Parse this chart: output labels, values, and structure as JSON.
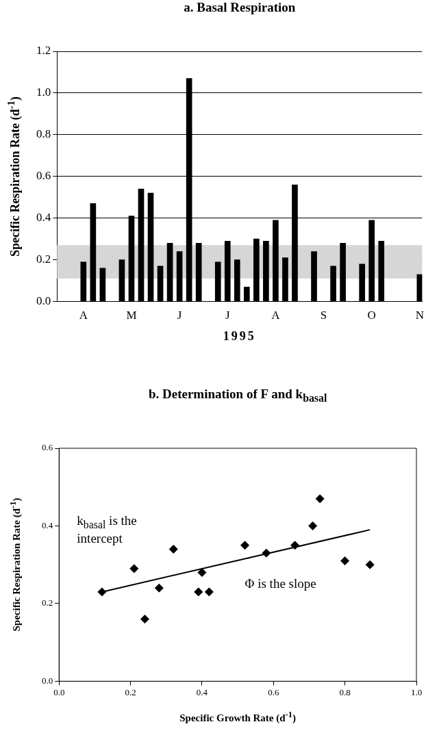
{
  "chart_data": [
    {
      "type": "bar",
      "title": "a. Basal Respiration",
      "xlabel": "1995",
      "ylabel": "Specific Respiration Rate (d$^{-1}$)",
      "categories": [
        null,
        null,
        null,
        null,
        null,
        "A",
        null,
        null,
        null,
        null,
        null,
        null,
        null,
        null,
        null,
        "M",
        null,
        null,
        null,
        null,
        null,
        null,
        null,
        null,
        null,
        "J",
        null,
        null,
        null,
        null,
        null,
        null,
        null,
        null,
        null,
        "J",
        null,
        null,
        null,
        null,
        null,
        null,
        null,
        null,
        null,
        "A",
        null,
        null,
        null,
        null,
        null,
        null,
        null,
        null,
        null,
        "S",
        null,
        null,
        null,
        null,
        null,
        null,
        null,
        null,
        null,
        "O",
        null,
        null,
        null,
        null,
        null,
        null,
        null,
        null,
        null,
        "N"
      ],
      "values": [
        null,
        null,
        null,
        null,
        null,
        0.19,
        null,
        0.47,
        null,
        0.16,
        null,
        null,
        null,
        0.2,
        null,
        0.41,
        null,
        0.54,
        null,
        0.52,
        null,
        0.17,
        null,
        0.28,
        null,
        0.24,
        null,
        1.07,
        null,
        0.28,
        null,
        null,
        null,
        0.19,
        null,
        0.29,
        null,
        0.2,
        null,
        0.07,
        null,
        0.3,
        null,
        0.29,
        null,
        0.39,
        null,
        0.21,
        null,
        0.56,
        null,
        null,
        null,
        0.24,
        null,
        null,
        null,
        0.17,
        null,
        0.28,
        null,
        null,
        null,
        0.18,
        null,
        0.39,
        null,
        0.29,
        null,
        null,
        null,
        null,
        null,
        null,
        null,
        0.13
      ],
      "color": "#000000",
      "ylim": [
        0,
        1.2
      ],
      "yticks": [
        {
          "value": 0,
          "label": "0.0"
        },
        {
          "value": 0.2,
          "label": "0.2"
        },
        {
          "value": 0.4,
          "label": "0.4"
        },
        {
          "value": 0.6,
          "label": "0.6"
        },
        {
          "value": 0.8,
          "label": "0.8"
        },
        {
          "value": 1,
          "label": "1.0"
        },
        {
          "value": 1.2,
          "label": "1.2"
        }
      ],
      "grid": "y",
      "bands": [
        {
          "axis": "y",
          "from": 0.11,
          "to": 0.27,
          "color": "#d6d6d6"
        }
      ]
    },
    {
      "type": "scatter",
      "title": "b. Determination of F and k$_{basal}$",
      "xlabel": "Specific Growth Rate (d$^{-1}$)",
      "ylabel": "Specific Respiration Rate (d$^{-1}$)",
      "series": [
        {
          "type": "scatter",
          "color": "#000000",
          "marker": "diamond",
          "x": [
            0.12,
            0.21,
            0.24,
            0.28,
            0.32,
            0.4,
            0.39,
            0.42,
            0.52,
            0.58,
            0.66,
            0.71,
            0.73,
            0.8,
            0.87
          ],
          "values": [
            0.23,
            0.29,
            0.16,
            0.24,
            0.34,
            0.28,
            0.23,
            0.23,
            0.35,
            0.33,
            0.35,
            0.4,
            0.47,
            0.31,
            0.3
          ]
        },
        {
          "type": "line",
          "color": "#000000",
          "marker": "none",
          "x": [
            0.12,
            0.87
          ],
          "values": [
            0.23,
            0.39
          ]
        }
      ],
      "xlim": [
        0,
        1
      ],
      "xticks": [
        {
          "value": 0,
          "label": "0.0"
        },
        {
          "value": 0.2,
          "label": "0.2"
        },
        {
          "value": 0.4,
          "label": "0.4"
        },
        {
          "value": 0.6,
          "label": "0.6"
        },
        {
          "value": 0.8,
          "label": "0.8"
        },
        {
          "value": 1,
          "label": "1.0"
        }
      ],
      "ylim": [
        0,
        0.6
      ],
      "yticks": [
        {
          "value": 0,
          "label": "0.0"
        },
        {
          "value": 0.2,
          "label": "0.2"
        },
        {
          "value": 0.4,
          "label": "0.4"
        },
        {
          "value": 0.6,
          "label": "0.6"
        }
      ],
      "annotations": [
        "k$_{basal}$ is the intercept",
        "Φ is the slope"
      ]
    }
  ]
}
